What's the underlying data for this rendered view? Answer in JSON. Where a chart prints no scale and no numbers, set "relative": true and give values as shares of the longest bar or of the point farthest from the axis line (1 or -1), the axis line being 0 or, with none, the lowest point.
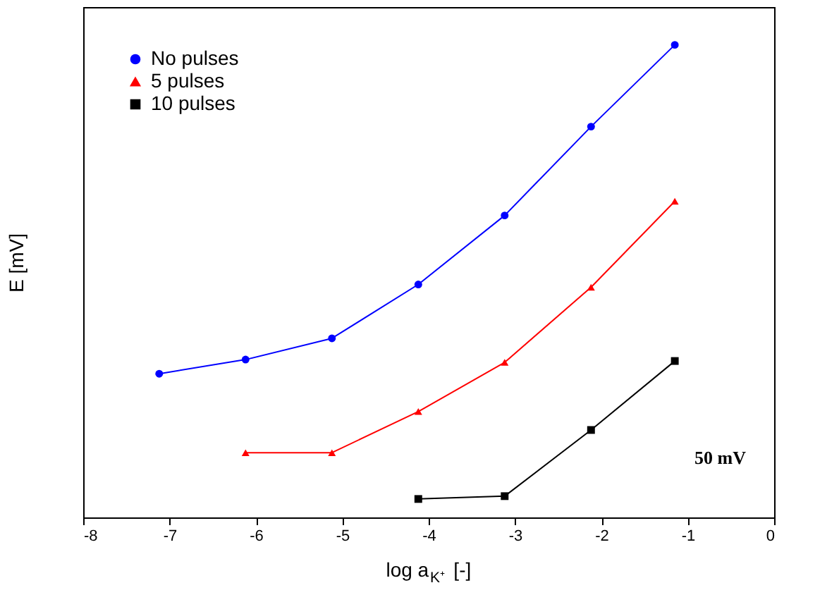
{
  "chart_data": {
    "type": "line",
    "relative": true,
    "xlabel": "log a$_{K⁺}$ [-]",
    "ylabel": "E [mV]",
    "xlim": [
      -8,
      0
    ],
    "xticks": [
      -8,
      -7,
      -6,
      -5,
      -4,
      -3,
      -2,
      -1,
      0
    ],
    "legend": "top left",
    "grid": false,
    "line_style": "solid",
    "annotations": [
      "50 mV"
    ],
    "series": [
      {
        "name": "No pulses",
        "color": "#0000ff",
        "marker": "circle",
        "x": [
          -7.12,
          -6.12,
          -5.12,
          -4.12,
          -3.12,
          -2.12,
          -1.15
        ],
        "values": [
          0.304,
          0.334,
          0.379,
          0.493,
          0.639,
          0.827,
          1
        ]
      },
      {
        "name": "5 pulses",
        "color": "#ff0000",
        "marker": "triangle",
        "x": [
          -6.12,
          -5.12,
          -4.12,
          -3.12,
          -2.12,
          -1.15
        ],
        "values": [
          0.137,
          0.137,
          0.224,
          0.328,
          0.487,
          0.669
        ]
      },
      {
        "name": "10 pulses",
        "color": "#000000",
        "marker": "square",
        "x": [
          -4.12,
          -3.12,
          -2.12,
          -1.15
        ],
        "values": [
          0.039,
          0.045,
          0.185,
          0.331
        ]
      }
    ]
  }
}
